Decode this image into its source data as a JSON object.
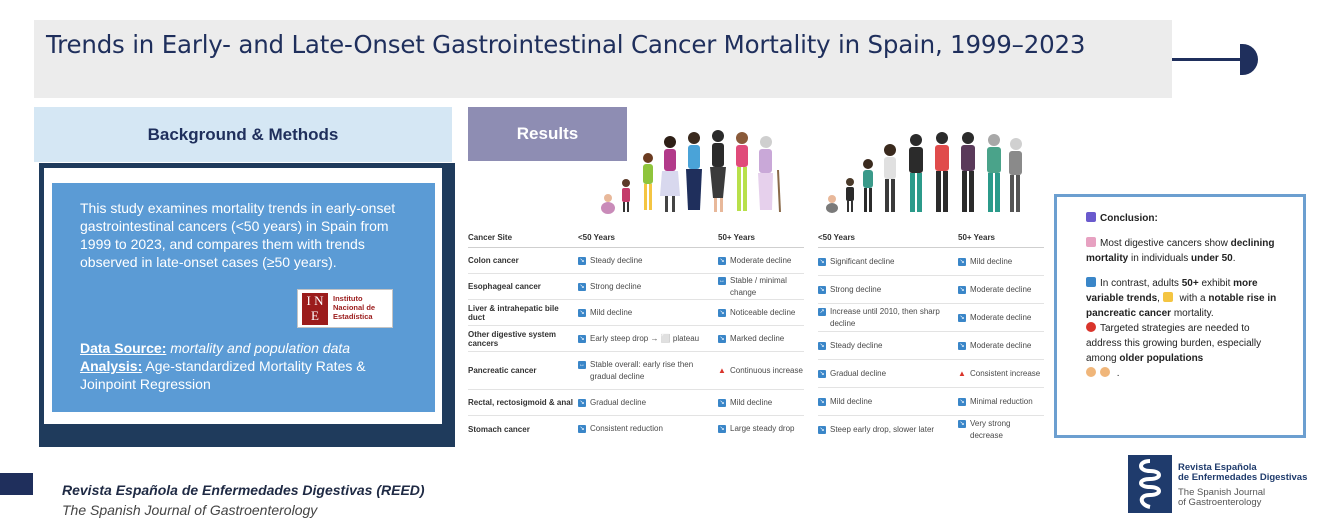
{
  "title": "Trends in Early- and Late-Onset Gastrointestinal Cancer Mortality in Spain, 1999–2023",
  "background": {
    "heading": "Background & Methods",
    "intro": "This study examines mortality trends in early-onset gastrointestinal cancers (<50 years) in Spain from 1999 to 2023, and compares them with trends observed in late-onset cases (≥50 years).",
    "data_source_label": "Data Source:",
    "data_source_value": " mortality  and population data",
    "analysis_label": "Analysis:",
    "analysis_value": "  Age-standardized Mortality Rates & Joinpoint Regression",
    "logo": {
      "mark": "INE",
      "line1": "Instituto",
      "line2": "Nacional de",
      "line3": "Estadística"
    }
  },
  "results": {
    "heading": "Results",
    "left_table": {
      "headers": [
        "Cancer Site",
        "<50 Years",
        "50+ Years"
      ],
      "rows": [
        {
          "site": "Colon cancer",
          "lt50": "Steady decline",
          "gt50": "Moderate decline"
        },
        {
          "site": "Esophageal cancer",
          "lt50": "Strong decline",
          "gt50": "Stable / minimal change"
        },
        {
          "site": "Liver & intrahepatic bile duct",
          "lt50": "Mild decline",
          "gt50": "Noticeable decline"
        },
        {
          "site": "Other digestive system cancers",
          "lt50": "Early steep drop → ⬜ plateau",
          "gt50": "Marked decline"
        },
        {
          "site": "Pancreatic cancer",
          "lt50": "Stable overall: early rise then gradual decline",
          "gt50": "Continuous increase"
        },
        {
          "site": "Rectal, rectosigmoid & anal",
          "lt50": "Gradual decline",
          "gt50": "Mild decline"
        },
        {
          "site": "Stomach cancer",
          "lt50": "Consistent reduction",
          "gt50": "Large steady drop"
        }
      ]
    },
    "right_table": {
      "headers": [
        "<50 Years",
        "50+ Years"
      ],
      "rows": [
        {
          "lt50": "Significant decline",
          "gt50": "Mild decline"
        },
        {
          "lt50": "Strong decline",
          "gt50": "Moderate decline"
        },
        {
          "lt50": "Increase until 2010, then  sharp decline",
          "gt50": "Moderate decline"
        },
        {
          "lt50": "Steady decline",
          "gt50": "Moderate decline"
        },
        {
          "lt50": "Gradual decline",
          "gt50": "Consistent increase"
        },
        {
          "lt50": "Mild decline",
          "gt50": "Minimal reduction"
        },
        {
          "lt50": "Steep early drop, slower later",
          "gt50": "Very strong decrease"
        }
      ]
    }
  },
  "conclusion": {
    "heading": "Conclusion:",
    "p1_a": "Most digestive cancers show ",
    "p1_b": "declining mortality",
    "p1_c": " in individuals ",
    "p1_d": "under 50",
    "p1_e": ".",
    "p2_a": "In contrast, adults ",
    "p2_b": "50+",
    "p2_c": " exhibit ",
    "p2_d": "more variable trends",
    "p2_e": ", ",
    "p2_f": " with a ",
    "p2_g": "notable rise in pancreatic cancer",
    "p2_h": " mortality.",
    "p3_a": "Targeted strategies are needed to address this growing burden, especially among ",
    "p3_b": "older populations",
    "p3_c": " ."
  },
  "footer": {
    "journal": "Revista Española de Enfermedades Digestivas (REED)",
    "subtitle": "The Spanish Journal of Gastroenterology",
    "logo_line1": "Revista Española",
    "logo_line2": "de Enfermedades Digestivas",
    "logo_line3": "The Spanish Journal",
    "logo_line4": "of Gastroenterology"
  },
  "colors": {
    "navy": "#1f2f5c",
    "blue_box": "#5b9bd5",
    "results_header": "#8e8db3",
    "conclusion_border": "#6c9fd0",
    "icon_blue": "#3a86c8",
    "icon_red": "#d9342b"
  }
}
